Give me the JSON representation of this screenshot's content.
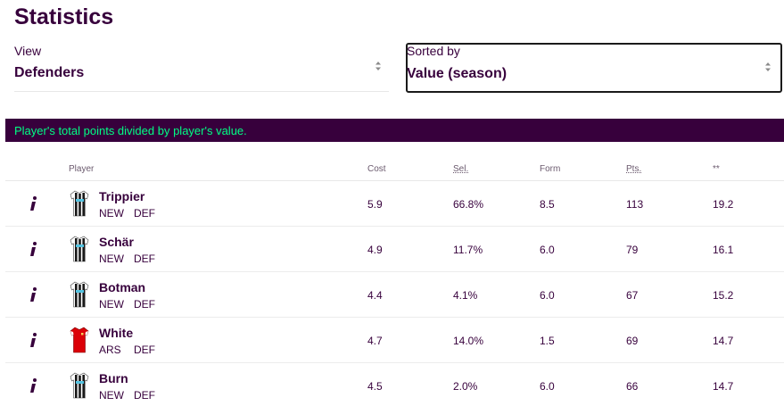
{
  "page": {
    "title": "Statistics"
  },
  "filters": {
    "view": {
      "label": "View",
      "value": "Defenders"
    },
    "sort": {
      "label": "Sorted by",
      "value": "Value (season)"
    }
  },
  "banner": {
    "text": "Player's total points divided by player's value."
  },
  "table": {
    "headers": {
      "player": "Player",
      "cost": "Cost",
      "sel": "Sel.",
      "form": "Form",
      "pts": "Pts.",
      "sorted": "**"
    },
    "rows": [
      {
        "name": "Trippier",
        "team": "NEW",
        "pos": "DEF",
        "cost": "5.9",
        "sel": "66.8%",
        "form": "8.5",
        "pts": "113",
        "value": "19.2",
        "kit": "newcastle"
      },
      {
        "name": "Schär",
        "team": "NEW",
        "pos": "DEF",
        "cost": "4.9",
        "sel": "11.7%",
        "form": "6.0",
        "pts": "79",
        "value": "16.1",
        "kit": "newcastle"
      },
      {
        "name": "Botman",
        "team": "NEW",
        "pos": "DEF",
        "cost": "4.4",
        "sel": "4.1%",
        "form": "6.0",
        "pts": "67",
        "value": "15.2",
        "kit": "newcastle"
      },
      {
        "name": "White",
        "team": "ARS",
        "pos": "DEF",
        "cost": "4.7",
        "sel": "14.0%",
        "form": "1.5",
        "pts": "69",
        "value": "14.7",
        "kit": "arsenal"
      },
      {
        "name": "Burn",
        "team": "NEW",
        "pos": "DEF",
        "cost": "4.5",
        "sel": "2.0%",
        "form": "6.0",
        "pts": "66",
        "value": "14.7",
        "kit": "newcastle"
      }
    ]
  },
  "colors": {
    "brand": "#37003c",
    "accent": "#00ff85",
    "arsenal_red": "#db0007"
  },
  "icons": {
    "info": "info-italic-i-icon",
    "select": "select-arrows-icon",
    "kit": "shirt-icon"
  }
}
